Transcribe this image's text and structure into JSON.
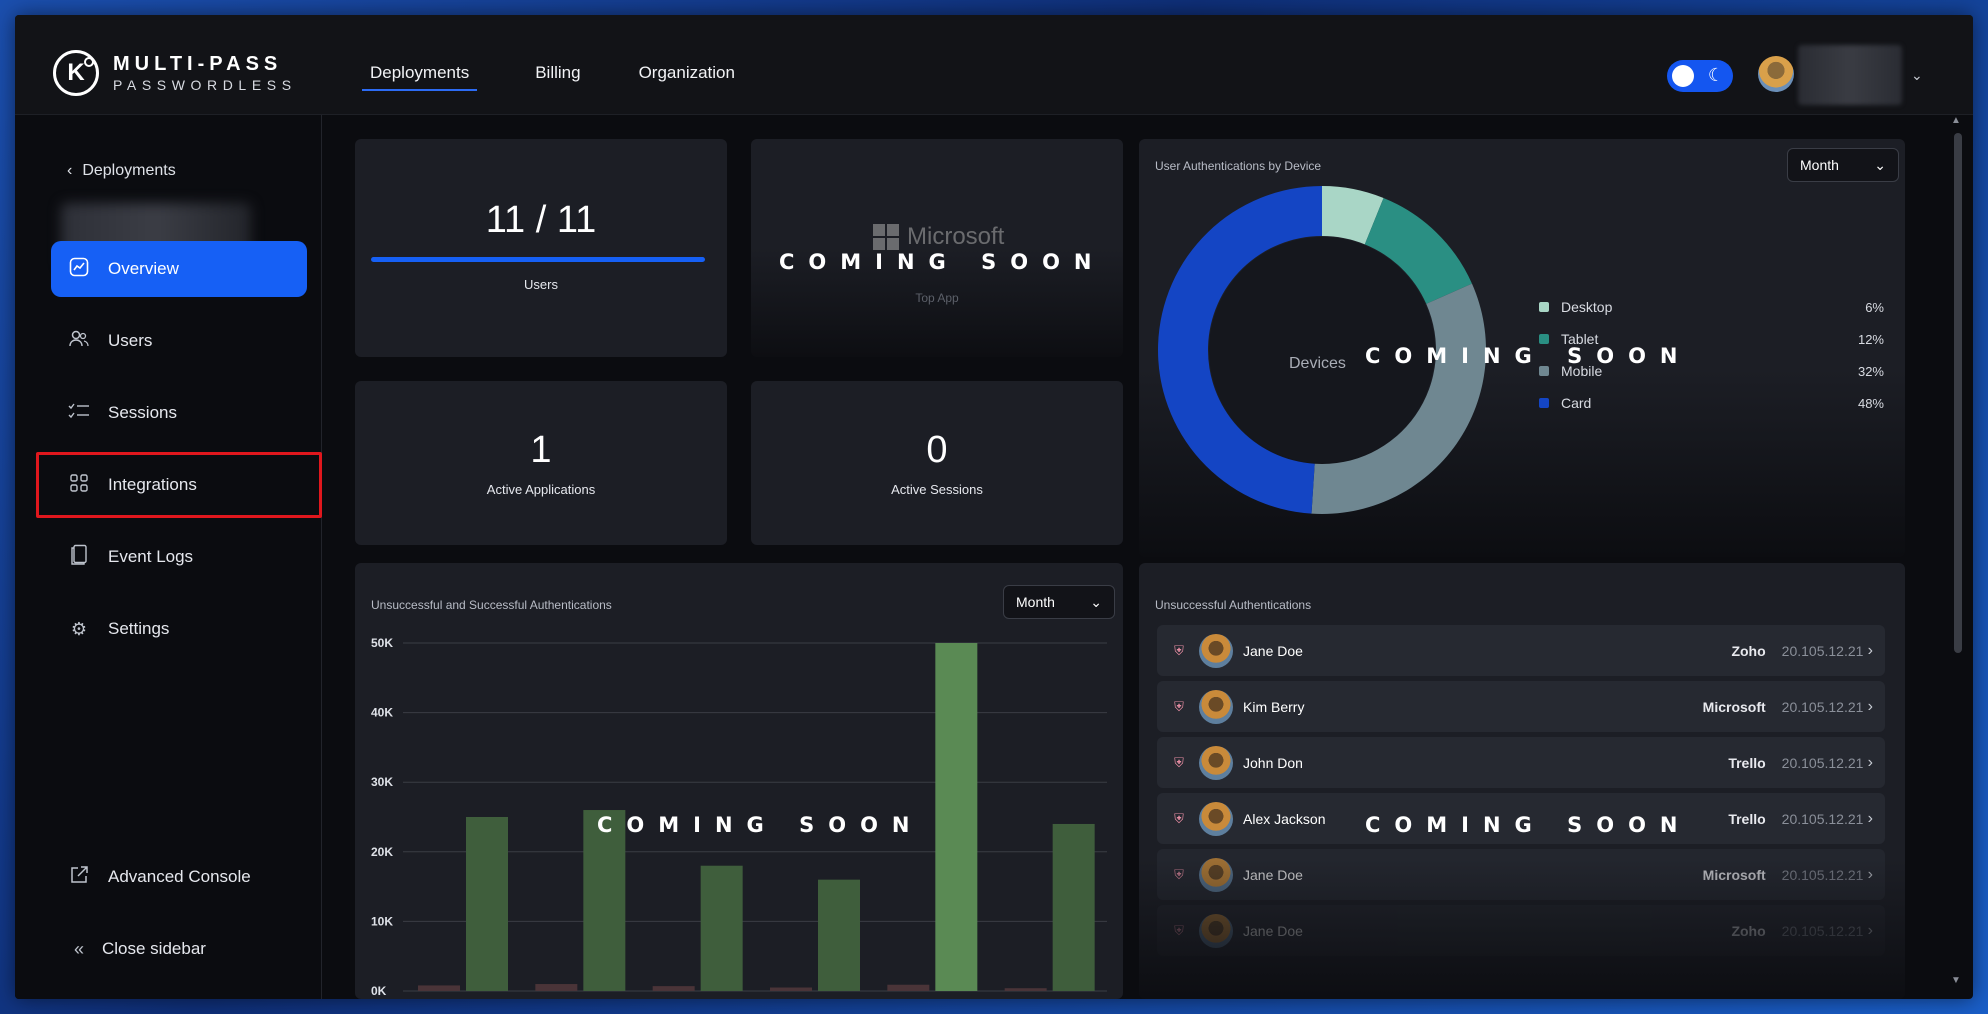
{
  "app": {
    "logo_mark": "K",
    "logo_line1": "MULTI-PASS",
    "logo_line2": "PASSWORDLESS"
  },
  "topnav": {
    "tabs": [
      {
        "label": "Deployments",
        "active": true
      },
      {
        "label": "Billing",
        "active": false
      },
      {
        "label": "Organization",
        "active": false
      }
    ]
  },
  "sidebar": {
    "back_label": "Deployments",
    "items": [
      {
        "label": "Overview",
        "icon": "chart-icon",
        "active": true
      },
      {
        "label": "Users",
        "icon": "users-icon"
      },
      {
        "label": "Sessions",
        "icon": "sessions-icon"
      },
      {
        "label": "Integrations",
        "icon": "grid-icon"
      },
      {
        "label": "Event Logs",
        "icon": "logs-icon"
      },
      {
        "label": "Settings",
        "icon": "gear-icon"
      }
    ],
    "advanced_console": "Advanced Console",
    "close_sidebar": "Close sidebar"
  },
  "stats": {
    "users_value": "11 / 11",
    "users_label": "Users",
    "users_progress": 1.0,
    "top_app_name": "Microsoft",
    "top_app_label": "Top App",
    "active_apps_value": "1",
    "active_apps_label": "Active Applications",
    "active_sessions_value": "0",
    "active_sessions_label": "Active Sessions"
  },
  "overlay": {
    "coming_soon": "COMING SOON"
  },
  "devices": {
    "title": "User Authentications by Device",
    "select": "Month",
    "center_label": "Devices",
    "legend": [
      {
        "name": "Desktop",
        "pct": "6%",
        "color": "#a9d6c6"
      },
      {
        "name": "Tablet",
        "pct": "12%",
        "color": "#2a8f83"
      },
      {
        "name": "Mobile",
        "pct": "32%",
        "color": "#6f8791"
      },
      {
        "name": "Card",
        "pct": "48%",
        "color": "#1445c4"
      }
    ]
  },
  "chart_data": {
    "type": "bar",
    "title": "Unsuccessful and Successful Authentications",
    "xlabel": "",
    "ylabel": "",
    "ylim": [
      0,
      50000
    ],
    "ytick_labels": [
      "0K",
      "10K",
      "20K",
      "30K",
      "40K",
      "50K"
    ],
    "categories": [
      "",
      "",
      "",
      "",
      "",
      ""
    ],
    "series": [
      {
        "values": [
          800,
          1000,
          700,
          500,
          900,
          400
        ]
      },
      {
        "values": [
          25000,
          26000,
          18000,
          16000,
          50000,
          24000
        ]
      }
    ]
  },
  "auth_chart": {
    "select": "Month"
  },
  "unsuccessful": {
    "title": "Unsuccessful Authentications",
    "rows": [
      {
        "name": "Jane Doe",
        "app": "Zoho",
        "date": "20.105.12.21"
      },
      {
        "name": "Kim Berry",
        "app": "Microsoft",
        "date": "20.105.12.21"
      },
      {
        "name": "John Don",
        "app": "Trello",
        "date": "20.105.12.21"
      },
      {
        "name": "Alex Jackson",
        "app": "Trello",
        "date": "20.105.12.21"
      },
      {
        "name": "Jane Doe",
        "app": "Microsoft",
        "date": "20.105.12.21"
      },
      {
        "name": "Jane Doe",
        "app": "Zoho",
        "date": "20.105.12.21"
      }
    ]
  }
}
